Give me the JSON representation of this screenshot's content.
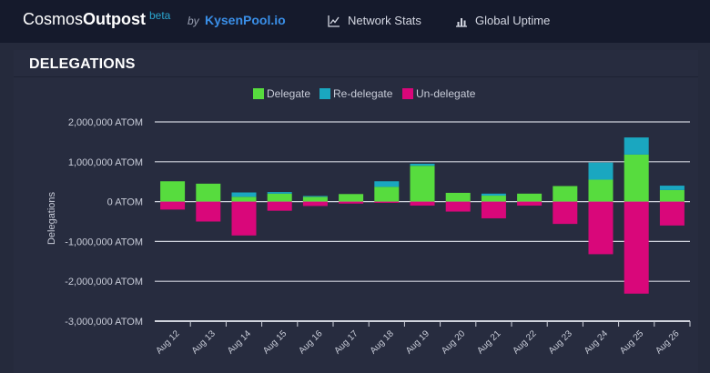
{
  "header": {
    "brand_light": "Cosmos",
    "brand_bold": "Outpost",
    "beta": "beta",
    "by": "by",
    "provider": "KysenPool.io",
    "nav": [
      {
        "label": "Network Stats",
        "icon": "line-chart-icon"
      },
      {
        "label": "Global Uptime",
        "icon": "bar-chart-icon"
      }
    ]
  },
  "card": {
    "title": "DELEGATIONS"
  },
  "colors": {
    "delegate": "#57dc3e",
    "redelegate": "#1aa7c0",
    "undelegate": "#d9077a",
    "grid": "#cfd2dc",
    "tick_text": "#c8ccd8"
  },
  "chart_data": {
    "type": "bar",
    "stacked": true,
    "ylabel": "Delegations",
    "ylim": [
      -3000000,
      2000000
    ],
    "yticks": [
      2000000,
      1000000,
      0,
      -1000000,
      -2000000,
      -3000000
    ],
    "ytick_labels": [
      "2,000,000 ATOM",
      "1,000,000 ATOM",
      "0 ATOM",
      "-1,000,000 ATOM",
      "-2,000,000 ATOM",
      "-3,000,000 ATOM"
    ],
    "legend_position": "top-center",
    "categories": [
      "Aug 12",
      "Aug 13",
      "Aug 14",
      "Aug 15",
      "Aug 16",
      "Aug 17",
      "Aug 18",
      "Aug 19",
      "Aug 20",
      "Aug 21",
      "Aug 22",
      "Aug 23",
      "Aug 24",
      "Aug 25",
      "Aug 26"
    ],
    "series": [
      {
        "name": "Delegate",
        "values": [
          510000,
          450000,
          120000,
          200000,
          120000,
          190000,
          370000,
          900000,
          220000,
          150000,
          200000,
          390000,
          550000,
          1180000,
          290000
        ]
      },
      {
        "name": "Re-delegate",
        "values": [
          0,
          0,
          110000,
          40000,
          20000,
          0,
          140000,
          50000,
          0,
          50000,
          0,
          0,
          430000,
          430000,
          110000
        ]
      },
      {
        "name": "Un-delegate",
        "values": [
          -200000,
          -500000,
          -850000,
          -230000,
          -110000,
          -50000,
          -30000,
          -100000,
          -250000,
          -420000,
          -100000,
          -560000,
          -1320000,
          -2310000,
          -600000
        ]
      }
    ]
  }
}
